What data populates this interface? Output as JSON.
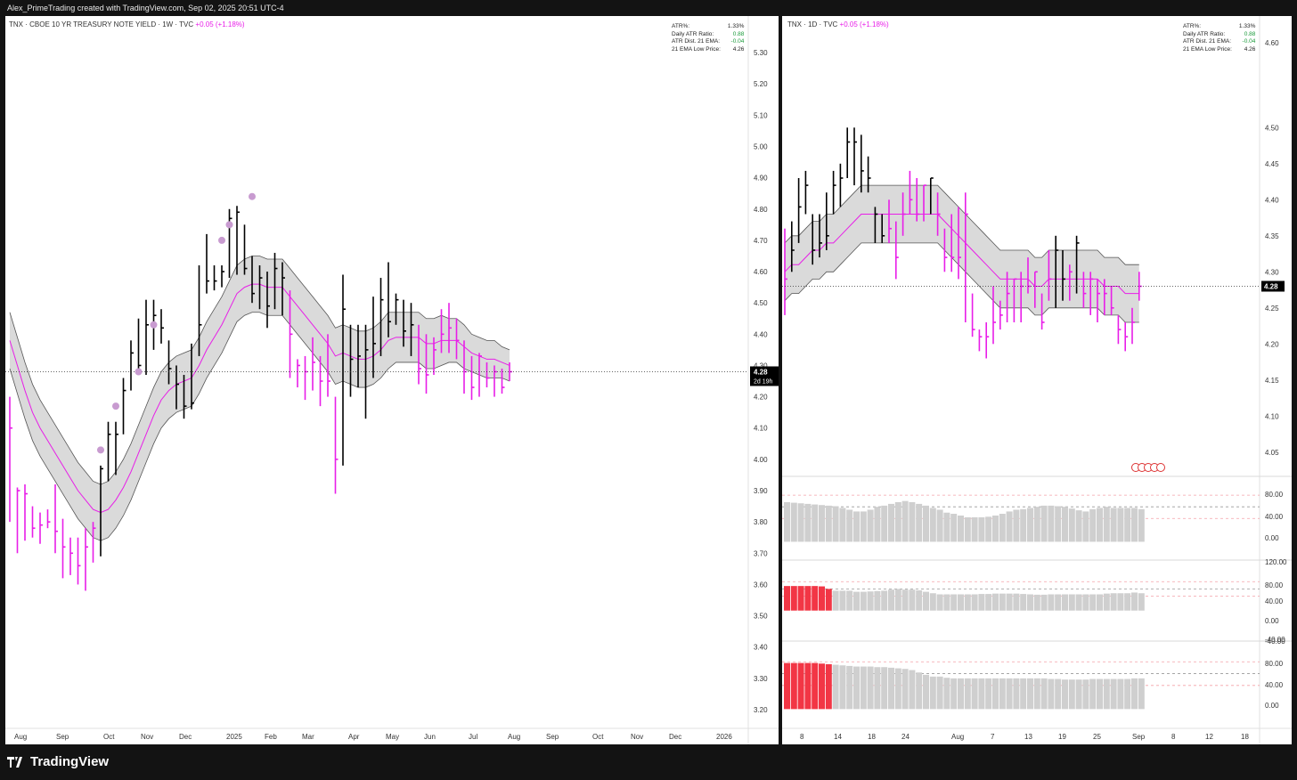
{
  "topbar": {
    "text": "Alex_PrimeTrading created with TradingView.com, Sep 02, 2025 20:51 UTC-4"
  },
  "footer": {
    "brand": "TradingView"
  },
  "colors": {
    "up": "#000000",
    "down": "#e81ee8",
    "ema": "#e81ee8",
    "band_fill": "#dadada",
    "band_edge": "#555555",
    "dot": "#c89bd0",
    "price_tag": "#000000",
    "hist_gray": "#cfcfcf",
    "hist_red": "#f23645"
  },
  "left": {
    "legend_prefix": "TNX · CBOE 10 YR TREASURY NOTE YIELD · 1W · TVC",
    "legend_change": "+0.05 (+1.18%)",
    "stats": [
      {
        "label": "ATR%:",
        "value": "1.33%",
        "color": "#222222"
      },
      {
        "label": "Daily ATR Ratio:",
        "value": "0.88",
        "color": "#1a9a3a"
      },
      {
        "label": "ATR Dist. 21 EMA:",
        "value": "-0.04",
        "color": "#1a9a3a"
      },
      {
        "label": "21 EMA Low Price:",
        "value": "4.26",
        "color": "#222222"
      }
    ],
    "price_tag": "4.28",
    "price_tag_sub": "2d 19h",
    "y_ticks": [
      "5.30",
      "5.20",
      "5.10",
      "5.00",
      "4.90",
      "4.80",
      "4.70",
      "4.60",
      "4.50",
      "4.40",
      "4.30",
      "4.20",
      "4.10",
      "4.00",
      "3.90",
      "3.80",
      "3.70",
      "3.60",
      "3.50",
      "3.40",
      "3.30",
      "3.20"
    ],
    "x_ticks": [
      "Aug",
      "Sep",
      "Oct",
      "Nov",
      "Dec",
      "2025",
      "Feb",
      "Mar",
      "Apr",
      "May",
      "Jun",
      "Jul",
      "Aug",
      "Sep",
      "Oct",
      "Nov",
      "Dec",
      "2026"
    ]
  },
  "right": {
    "legend_prefix": "TNX · 1D · TVC",
    "legend_change": "+0.05 (+1.18%)",
    "stats": [
      {
        "label": "ATR%:",
        "value": "1.33%",
        "color": "#222222"
      },
      {
        "label": "Daily ATR Ratio:",
        "value": "0.88",
        "color": "#1a9a3a"
      },
      {
        "label": "ATR Dist. 21 EMA:",
        "value": "-0.04",
        "color": "#1a9a3a"
      },
      {
        "label": "21 EMA Low Price:",
        "value": "4.26",
        "color": "#222222"
      }
    ],
    "price_tag": "4.28",
    "y_ticks": [
      "4.50",
      "4.45",
      "4.40",
      "4.35",
      "4.30",
      "4.25",
      "4.20",
      "4.15",
      "4.10",
      "4.05"
    ],
    "y_ticks_low": [
      "4.60"
    ],
    "x_ticks": [
      "8",
      "14",
      "18",
      "24",
      "Aug",
      "7",
      "13",
      "19",
      "25",
      "Sep",
      "8",
      "12",
      "18"
    ],
    "osc1_ticks": [
      "80.00",
      "40.00",
      "0.00"
    ],
    "osc2_ticks": [
      "120.00",
      "80.00",
      "40.00",
      "0.00",
      "-40.00"
    ],
    "osc3_ticks": [
      "-40.00",
      "80.00",
      "40.00",
      "0.00"
    ]
  },
  "chart_data": [
    {
      "type": "ohlc",
      "title": "TNX · CBOE 10 YR TREASURY NOTE YIELD · 1W · TVC",
      "ylim": [
        3.18,
        5.36
      ],
      "bars": [
        [
          4.1,
          4.2,
          3.8,
          "d"
        ],
        [
          3.9,
          3.91,
          3.7,
          "d"
        ],
        [
          3.89,
          3.92,
          3.74,
          "d"
        ],
        [
          3.78,
          3.85,
          3.75,
          "d"
        ],
        [
          3.79,
          3.83,
          3.73,
          "d"
        ],
        [
          3.8,
          3.84,
          3.78,
          "d"
        ],
        [
          3.77,
          3.92,
          3.7,
          "d"
        ],
        [
          3.72,
          3.81,
          3.62,
          "d"
        ],
        [
          3.7,
          3.75,
          3.63,
          "d"
        ],
        [
          3.66,
          3.75,
          3.6,
          "d"
        ],
        [
          3.72,
          3.78,
          3.58,
          "d"
        ],
        [
          3.78,
          3.8,
          3.67,
          "d"
        ],
        [
          3.97,
          3.98,
          3.69,
          "u"
        ],
        [
          4.08,
          4.12,
          3.93,
          "u"
        ],
        [
          4.08,
          4.12,
          3.95,
          "u"
        ],
        [
          4.22,
          4.26,
          4.08,
          "u"
        ],
        [
          4.34,
          4.38,
          4.22,
          "u"
        ],
        [
          4.3,
          4.45,
          4.28,
          "u"
        ],
        [
          4.43,
          4.51,
          4.27,
          "u"
        ],
        [
          4.46,
          4.51,
          4.35,
          "u"
        ],
        [
          4.42,
          4.48,
          4.37,
          "u"
        ],
        [
          4.29,
          4.38,
          4.24,
          "u"
        ],
        [
          4.24,
          4.3,
          4.16,
          "u"
        ],
        [
          4.17,
          4.27,
          4.13,
          "u"
        ],
        [
          4.18,
          4.37,
          4.16,
          "u"
        ],
        [
          4.43,
          4.62,
          4.33,
          "u"
        ],
        [
          4.57,
          4.72,
          4.53,
          "u"
        ],
        [
          4.57,
          4.62,
          4.54,
          "u"
        ],
        [
          4.6,
          4.62,
          4.55,
          "u"
        ],
        [
          4.77,
          4.8,
          4.58,
          "u"
        ],
        [
          4.79,
          4.81,
          4.59,
          "u"
        ],
        [
          4.61,
          4.75,
          4.59,
          "u"
        ],
        [
          4.53,
          4.65,
          4.5,
          "u"
        ],
        [
          4.58,
          4.62,
          4.48,
          "u"
        ],
        [
          4.49,
          4.6,
          4.42,
          "u"
        ],
        [
          4.61,
          4.66,
          4.48,
          "u"
        ],
        [
          4.58,
          4.63,
          4.46,
          "u"
        ],
        [
          4.4,
          4.54,
          4.26,
          "d"
        ],
        [
          4.3,
          4.32,
          4.23,
          "d"
        ],
        [
          4.28,
          4.33,
          4.19,
          "d"
        ],
        [
          4.31,
          4.39,
          4.22,
          "d"
        ],
        [
          4.25,
          4.33,
          4.17,
          "d"
        ],
        [
          4.25,
          4.4,
          4.2,
          "d"
        ],
        [
          4.0,
          4.2,
          3.89,
          "d"
        ],
        [
          4.48,
          4.59,
          3.98,
          "u"
        ],
        [
          4.32,
          4.43,
          4.2,
          "u"
        ],
        [
          4.33,
          4.43,
          4.23,
          "u"
        ],
        [
          4.35,
          4.43,
          4.13,
          "u"
        ],
        [
          4.37,
          4.52,
          4.26,
          "u"
        ],
        [
          4.51,
          4.58,
          4.33,
          "u"
        ],
        [
          4.44,
          4.63,
          4.39,
          "u"
        ],
        [
          4.51,
          4.53,
          4.43,
          "u"
        ],
        [
          4.41,
          4.51,
          4.36,
          "u"
        ],
        [
          4.43,
          4.5,
          4.33,
          "u"
        ],
        [
          4.29,
          4.43,
          4.24,
          "d"
        ],
        [
          4.27,
          4.4,
          4.21,
          "d"
        ],
        [
          4.35,
          4.39,
          4.27,
          "d"
        ],
        [
          4.4,
          4.48,
          4.34,
          "d"
        ],
        [
          4.42,
          4.5,
          4.34,
          "d"
        ],
        [
          4.38,
          4.45,
          4.32,
          "d"
        ],
        [
          4.28,
          4.38,
          4.21,
          "d"
        ],
        [
          4.23,
          4.33,
          4.19,
          "d"
        ],
        [
          4.33,
          4.34,
          4.2,
          "d"
        ],
        [
          4.26,
          4.31,
          4.23,
          "d"
        ],
        [
          4.28,
          4.3,
          4.2,
          "d"
        ],
        [
          4.23,
          4.29,
          4.21,
          "d"
        ],
        [
          4.28,
          4.31,
          4.25,
          "d"
        ]
      ],
      "ema": [
        4.38,
        4.3,
        4.22,
        4.15,
        4.1,
        4.06,
        4.02,
        3.98,
        3.94,
        3.9,
        3.87,
        3.84,
        3.83,
        3.84,
        3.87,
        3.91,
        3.96,
        4.02,
        4.08,
        4.14,
        4.19,
        4.22,
        4.24,
        4.25,
        4.26,
        4.3,
        4.35,
        4.39,
        4.43,
        4.48,
        4.53,
        4.55,
        4.56,
        4.56,
        4.55,
        4.55,
        4.55,
        4.52,
        4.49,
        4.46,
        4.43,
        4.4,
        4.37,
        4.33,
        4.34,
        4.33,
        4.32,
        4.32,
        4.33,
        4.35,
        4.38,
        4.39,
        4.39,
        4.39,
        4.39,
        4.37,
        4.37,
        4.38,
        4.38,
        4.38,
        4.36,
        4.34,
        4.33,
        4.32,
        4.32,
        4.31,
        4.3
      ],
      "band_half_width": [
        0.09,
        0.09,
        0.09,
        0.09,
        0.09,
        0.09,
        0.09,
        0.09,
        0.09,
        0.09,
        0.09,
        0.09,
        0.09,
        0.09,
        0.09,
        0.09,
        0.09,
        0.09,
        0.09,
        0.09,
        0.09,
        0.09,
        0.09,
        0.09,
        0.09,
        0.09,
        0.09,
        0.09,
        0.09,
        0.09,
        0.09,
        0.09,
        0.09,
        0.09,
        0.09,
        0.09,
        0.09,
        0.09,
        0.09,
        0.09,
        0.09,
        0.09,
        0.09,
        0.09,
        0.09,
        0.09,
        0.09,
        0.09,
        0.09,
        0.09,
        0.09,
        0.08,
        0.08,
        0.08,
        0.08,
        0.08,
        0.08,
        0.08,
        0.07,
        0.07,
        0.07,
        0.06,
        0.06,
        0.06,
        0.06,
        0.05,
        0.05
      ],
      "dots": [
        [
          12,
          4.03
        ],
        [
          14,
          4.17
        ],
        [
          17,
          4.28
        ],
        [
          19,
          4.43
        ],
        [
          28,
          4.7
        ],
        [
          29,
          4.75
        ],
        [
          32,
          4.84
        ]
      ],
      "current_price": 4.28
    },
    {
      "type": "ohlc",
      "title": "TNX · 1D · TVC",
      "ylim": [
        4.03,
        4.63
      ],
      "bars": [
        [
          4.29,
          4.36,
          4.24,
          "d"
        ],
        [
          4.33,
          4.37,
          4.3,
          "u"
        ],
        [
          4.39,
          4.43,
          4.34,
          "u"
        ],
        [
          4.42,
          4.44,
          4.38,
          "u"
        ],
        [
          4.33,
          4.38,
          4.31,
          "u"
        ],
        [
          4.34,
          4.38,
          4.32,
          "u"
        ],
        [
          4.35,
          4.41,
          4.33,
          "u"
        ],
        [
          4.42,
          4.44,
          4.38,
          "u"
        ],
        [
          4.43,
          4.45,
          4.39,
          "u"
        ],
        [
          4.48,
          4.5,
          4.43,
          "u"
        ],
        [
          4.48,
          4.5,
          4.42,
          "u"
        ],
        [
          4.44,
          4.49,
          4.41,
          "u"
        ],
        [
          4.43,
          4.46,
          4.41,
          "u"
        ],
        [
          4.38,
          4.39,
          4.34,
          "u"
        ],
        [
          4.35,
          4.38,
          4.34,
          "u"
        ],
        [
          4.36,
          4.4,
          4.34,
          "d"
        ],
        [
          4.32,
          4.37,
          4.29,
          "d"
        ],
        [
          4.38,
          4.41,
          4.35,
          "d"
        ],
        [
          4.4,
          4.44,
          4.38,
          "d"
        ],
        [
          4.38,
          4.43,
          4.37,
          "d"
        ],
        [
          4.42,
          4.42,
          4.37,
          "d"
        ],
        [
          4.43,
          4.43,
          4.38,
          "u"
        ],
        [
          4.38,
          4.41,
          4.35,
          "d"
        ],
        [
          4.32,
          4.36,
          4.3,
          "d"
        ],
        [
          4.32,
          4.38,
          4.3,
          "d"
        ],
        [
          4.32,
          4.39,
          4.29,
          "d"
        ],
        [
          4.38,
          4.41,
          4.23,
          "d"
        ],
        [
          4.22,
          4.27,
          4.21,
          "d"
        ],
        [
          4.21,
          4.22,
          4.19,
          "d"
        ],
        [
          4.21,
          4.23,
          4.18,
          "d"
        ],
        [
          4.23,
          4.28,
          4.2,
          "d"
        ],
        [
          4.24,
          4.26,
          4.22,
          "d"
        ],
        [
          4.27,
          4.3,
          4.23,
          "d"
        ],
        [
          4.29,
          4.29,
          4.23,
          "d"
        ],
        [
          4.28,
          4.3,
          4.23,
          "d"
        ],
        [
          4.28,
          4.32,
          4.27,
          "d"
        ],
        [
          4.3,
          4.3,
          4.25,
          "d"
        ],
        [
          4.23,
          4.27,
          4.22,
          "d"
        ],
        [
          4.29,
          4.33,
          4.26,
          "d"
        ],
        [
          4.33,
          4.35,
          4.25,
          "u"
        ],
        [
          4.29,
          4.33,
          4.26,
          "u"
        ],
        [
          4.3,
          4.31,
          4.26,
          "d"
        ],
        [
          4.34,
          4.35,
          4.27,
          "u"
        ],
        [
          4.27,
          4.3,
          4.25,
          "d"
        ],
        [
          4.29,
          4.3,
          4.24,
          "d"
        ],
        [
          4.27,
          4.29,
          4.23,
          "d"
        ],
        [
          4.27,
          4.29,
          4.24,
          "d"
        ],
        [
          4.25,
          4.28,
          4.24,
          "d"
        ],
        [
          4.22,
          4.24,
          4.2,
          "d"
        ],
        [
          4.21,
          4.23,
          4.19,
          "d"
        ],
        [
          4.23,
          4.25,
          4.2,
          "d"
        ],
        [
          4.28,
          4.3,
          4.26,
          "d"
        ]
      ],
      "ema": [
        4.3,
        4.31,
        4.31,
        4.32,
        4.33,
        4.33,
        4.34,
        4.34,
        4.35,
        4.36,
        4.37,
        4.38,
        4.38,
        4.38,
        4.38,
        4.38,
        4.38,
        4.38,
        4.38,
        4.38,
        4.38,
        4.38,
        4.38,
        4.37,
        4.36,
        4.35,
        4.34,
        4.33,
        4.32,
        4.31,
        4.3,
        4.29,
        4.29,
        4.29,
        4.29,
        4.29,
        4.28,
        4.28,
        4.29,
        4.29,
        4.29,
        4.29,
        4.29,
        4.29,
        4.29,
        4.29,
        4.28,
        4.28,
        4.28,
        4.27,
        4.27,
        4.27
      ],
      "band_half_width": 0.04,
      "current_price": 4.28
    },
    {
      "type": "bar",
      "title": "",
      "ylim": [
        -10,
        100
      ],
      "values": [
        68,
        67,
        66,
        65,
        64,
        63,
        62,
        61,
        58,
        55,
        52,
        52,
        55,
        60,
        62,
        65,
        68,
        70,
        68,
        65,
        62,
        58,
        55,
        50,
        48,
        45,
        42,
        42,
        42,
        43,
        45,
        48,
        52,
        55,
        56,
        58,
        60,
        62,
        62,
        61,
        60,
        57,
        54,
        52,
        56,
        58,
        60,
        58,
        58,
        58,
        58,
        56
      ],
      "red_count": 0
    },
    {
      "type": "bar",
      "title": "",
      "ylim": [
        -50,
        130
      ],
      "values": [
        68,
        68,
        68,
        68,
        68,
        67,
        60,
        55,
        55,
        55,
        52,
        52,
        53,
        54,
        55,
        58,
        60,
        58,
        58,
        56,
        52,
        48,
        45,
        45,
        45,
        45,
        45,
        45,
        46,
        46,
        47,
        47,
        47,
        47,
        46,
        45,
        44,
        44,
        45,
        45,
        45,
        45,
        45,
        45,
        45,
        45,
        47,
        48,
        48,
        48,
        50,
        48
      ],
      "red_count": 7
    },
    {
      "type": "bar",
      "title": "",
      "ylim": [
        -10,
        100
      ],
      "values": [
        78,
        78,
        78,
        78,
        78,
        77,
        76,
        75,
        74,
        73,
        72,
        72,
        72,
        71,
        71,
        70,
        69,
        68,
        66,
        62,
        58,
        55,
        55,
        53,
        52,
        52,
        52,
        52,
        52,
        52,
        52,
        52,
        52,
        52,
        52,
        52,
        52,
        52,
        51,
        51,
        50,
        50,
        50,
        50,
        51,
        51,
        51,
        51,
        51,
        51,
        52,
        52
      ],
      "red_count": 7
    }
  ]
}
